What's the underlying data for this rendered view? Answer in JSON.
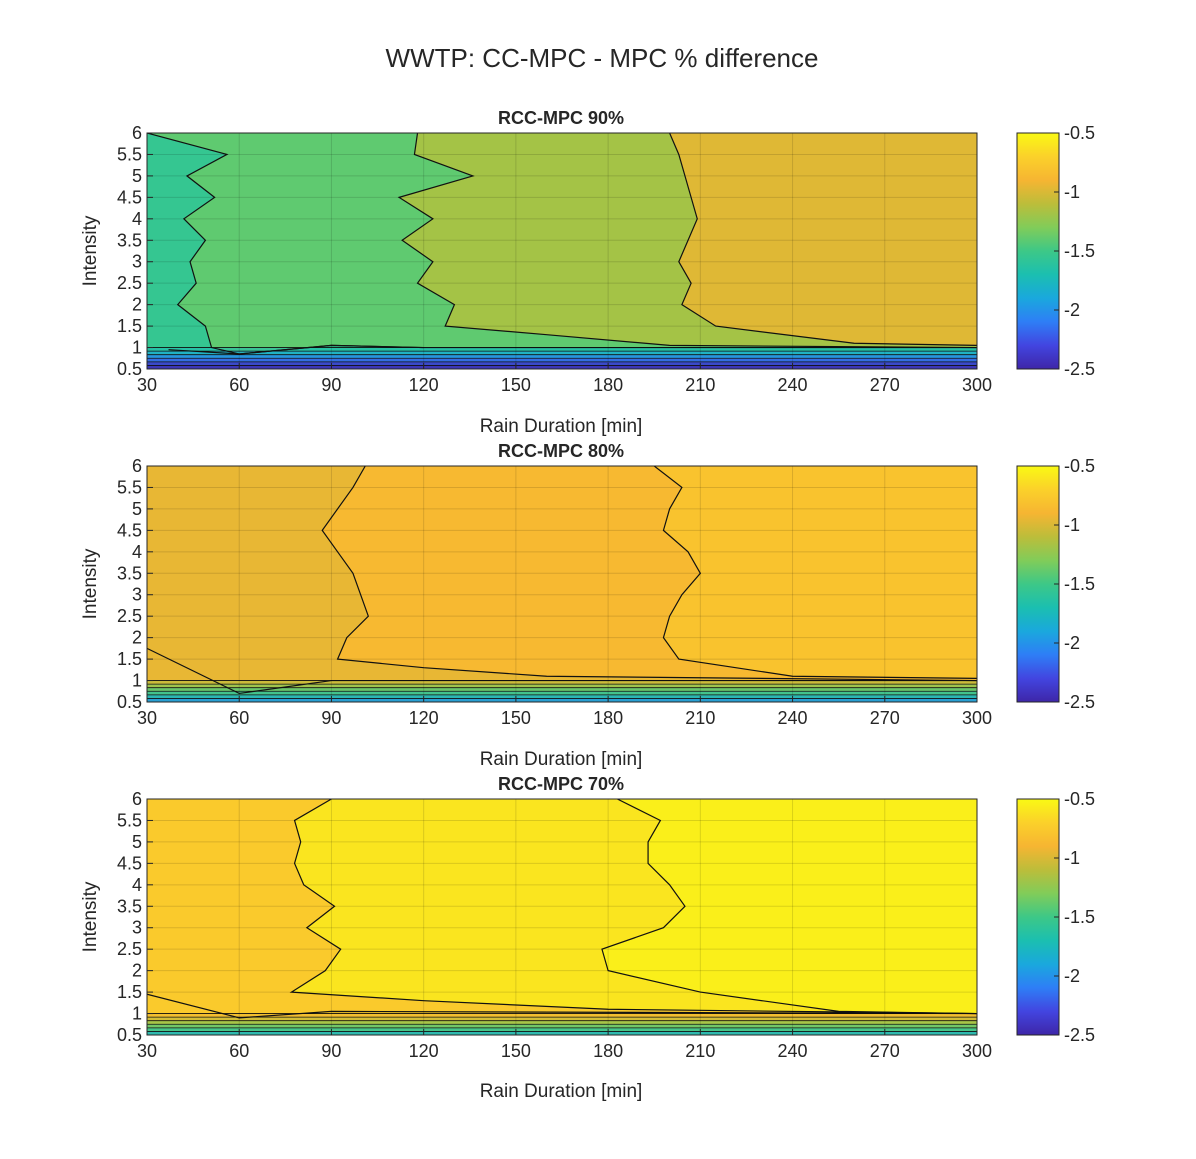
{
  "figure": {
    "title": "WWTP: CC-MPC - MPC % difference"
  },
  "colorbar": {
    "colors": [
      "#3e26a8",
      "#4245e0",
      "#2e7ef6",
      "#1aa8dd",
      "#1bbfb0",
      "#3dc887",
      "#81cc59",
      "#bcbd3a",
      "#f6b532",
      "#fbd12a",
      "#f9f914"
    ]
  },
  "chart_data": [
    {
      "type": "contour",
      "title": "RCC-MPC 90%",
      "xlabel": "Rain Duration [min]",
      "ylabel": "Intensity",
      "xlim": [
        30,
        300
      ],
      "ylim": [
        0.5,
        6
      ],
      "xticks": [
        30,
        60,
        90,
        120,
        150,
        180,
        210,
        240,
        270,
        300
      ],
      "yticks": [
        0.5,
        1,
        1.5,
        2,
        2.5,
        3,
        3.5,
        4,
        4.5,
        5,
        5.5,
        6
      ],
      "clim": [
        -2.5,
        -0.5
      ],
      "cbar_ticks": [
        -0.5,
        -1,
        -1.5,
        -2,
        -2.5
      ],
      "regions": [
        {
          "label": "left",
          "value": -1.55,
          "boundary": [
            [
              37,
              0.95
            ],
            [
              60,
              0.85
            ],
            [
              90,
              1.05
            ],
            [
              120,
              1.0
            ],
            [
              160,
              1.0
            ],
            [
              200,
              1.0
            ],
            [
              300,
              1.0
            ]
          ]
        },
        {
          "label": "band1",
          "value": -1.4,
          "boundary": [
            [
              30,
              6
            ],
            [
              56,
              5.5
            ],
            [
              43,
              5
            ],
            [
              52,
              4.5
            ],
            [
              42,
              4
            ],
            [
              49,
              3.5
            ],
            [
              44,
              3
            ],
            [
              46,
              2.5
            ],
            [
              40,
              2
            ],
            [
              49,
              1.5
            ],
            [
              51,
              1.0
            ],
            [
              60,
              0.85
            ],
            [
              90,
              1.05
            ],
            [
              120,
              1.0
            ]
          ]
        },
        {
          "label": "band2",
          "value": -1.18,
          "boundary": [
            [
              118,
              6
            ],
            [
              117,
              5.5
            ],
            [
              136,
              5
            ],
            [
              112,
              4.5
            ],
            [
              123,
              4
            ],
            [
              113,
              3.5
            ],
            [
              123,
              3
            ],
            [
              118,
              2.5
            ],
            [
              130,
              2
            ],
            [
              127,
              1.5
            ],
            [
              160,
              1.3
            ],
            [
              200,
              1.05
            ],
            [
              300,
              1.0
            ]
          ]
        },
        {
          "label": "band3",
          "value": -0.98,
          "boundary": [
            [
              200,
              6
            ],
            [
              203,
              5.5
            ],
            [
              207,
              4.5
            ],
            [
              209,
              4
            ],
            [
              203,
              3
            ],
            [
              207,
              2.5
            ],
            [
              204,
              2
            ],
            [
              215,
              1.5
            ],
            [
              260,
              1.1
            ],
            [
              300,
              1.05
            ]
          ]
        }
      ]
    },
    {
      "type": "contour",
      "title": "RCC-MPC 80%",
      "xlabel": "Rain Duration [min]",
      "ylabel": "Intensity",
      "xlim": [
        30,
        300
      ],
      "ylim": [
        0.5,
        6
      ],
      "xticks": [
        30,
        60,
        90,
        120,
        150,
        180,
        210,
        240,
        270,
        300
      ],
      "yticks": [
        0.5,
        1,
        1.5,
        2,
        2.5,
        3,
        3.5,
        4,
        4.5,
        5,
        5.5,
        6
      ],
      "clim": [
        -2.5,
        -0.5
      ],
      "cbar_ticks": [
        -0.5,
        -1,
        -1.5,
        -2,
        -2.5
      ],
      "regions": [
        {
          "label": "left",
          "value": -0.95,
          "boundary": [
            [
              30,
              1.75
            ],
            [
              60,
              0.7
            ],
            [
              90,
              1.0
            ],
            [
              300,
              1.0
            ]
          ]
        },
        {
          "label": "band2",
          "value": -0.87,
          "boundary": [
            [
              101,
              6
            ],
            [
              97,
              5.5
            ],
            [
              87,
              4.5
            ],
            [
              92,
              4
            ],
            [
              97,
              3.5
            ],
            [
              102,
              2.5
            ],
            [
              95,
              2
            ],
            [
              92,
              1.5
            ],
            [
              120,
              1.3
            ],
            [
              160,
              1.1
            ],
            [
              300,
              1.0
            ]
          ]
        },
        {
          "label": "band3",
          "value": -0.8,
          "boundary": [
            [
              195,
              6
            ],
            [
              204,
              5.5
            ],
            [
              200,
              5
            ],
            [
              198,
              4.5
            ],
            [
              206,
              4
            ],
            [
              210,
              3.5
            ],
            [
              204,
              3
            ],
            [
              200,
              2.5
            ],
            [
              198,
              2
            ],
            [
              203,
              1.5
            ],
            [
              240,
              1.1
            ],
            [
              300,
              1.05
            ]
          ]
        }
      ]
    },
    {
      "type": "contour",
      "title": "RCC-MPC 70%",
      "xlabel": "Rain Duration [min]",
      "ylabel": "Intensity",
      "xlim": [
        30,
        300
      ],
      "ylim": [
        0.5,
        6
      ],
      "xticks": [
        30,
        60,
        90,
        120,
        150,
        180,
        210,
        240,
        270,
        300
      ],
      "yticks": [
        0.5,
        1,
        1.5,
        2,
        2.5,
        3,
        3.5,
        4,
        4.5,
        5,
        5.5,
        6
      ],
      "clim": [
        -2.5,
        -0.5
      ],
      "cbar_ticks": [
        -0.5,
        -1,
        -1.5,
        -2,
        -2.5
      ],
      "regions": [
        {
          "label": "left",
          "value": -0.75,
          "boundary": [
            [
              30,
              1.45
            ],
            [
              60,
              0.9
            ],
            [
              90,
              1.05
            ],
            [
              300,
              1.0
            ]
          ]
        },
        {
          "label": "band2",
          "value": -0.6,
          "boundary": [
            [
              90,
              6
            ],
            [
              78,
              5.5
            ],
            [
              80,
              5
            ],
            [
              78,
              4.5
            ],
            [
              81,
              4
            ],
            [
              91,
              3.5
            ],
            [
              82,
              3
            ],
            [
              93,
              2.5
            ],
            [
              88,
              2
            ],
            [
              77,
              1.5
            ],
            [
              120,
              1.3
            ],
            [
              180,
              1.1
            ],
            [
              300,
              1.0
            ]
          ]
        },
        {
          "label": "band3",
          "value": -0.55,
          "boundary": [
            [
              183,
              6
            ],
            [
              197,
              5.5
            ],
            [
              193,
              5
            ],
            [
              193,
              4.5
            ],
            [
              200,
              4
            ],
            [
              205,
              3.5
            ],
            [
              198,
              3
            ],
            [
              178,
              2.5
            ],
            [
              180,
              2
            ],
            [
              210,
              1.5
            ],
            [
              255,
              1.05
            ],
            [
              300,
              1.0
            ]
          ]
        }
      ]
    }
  ]
}
